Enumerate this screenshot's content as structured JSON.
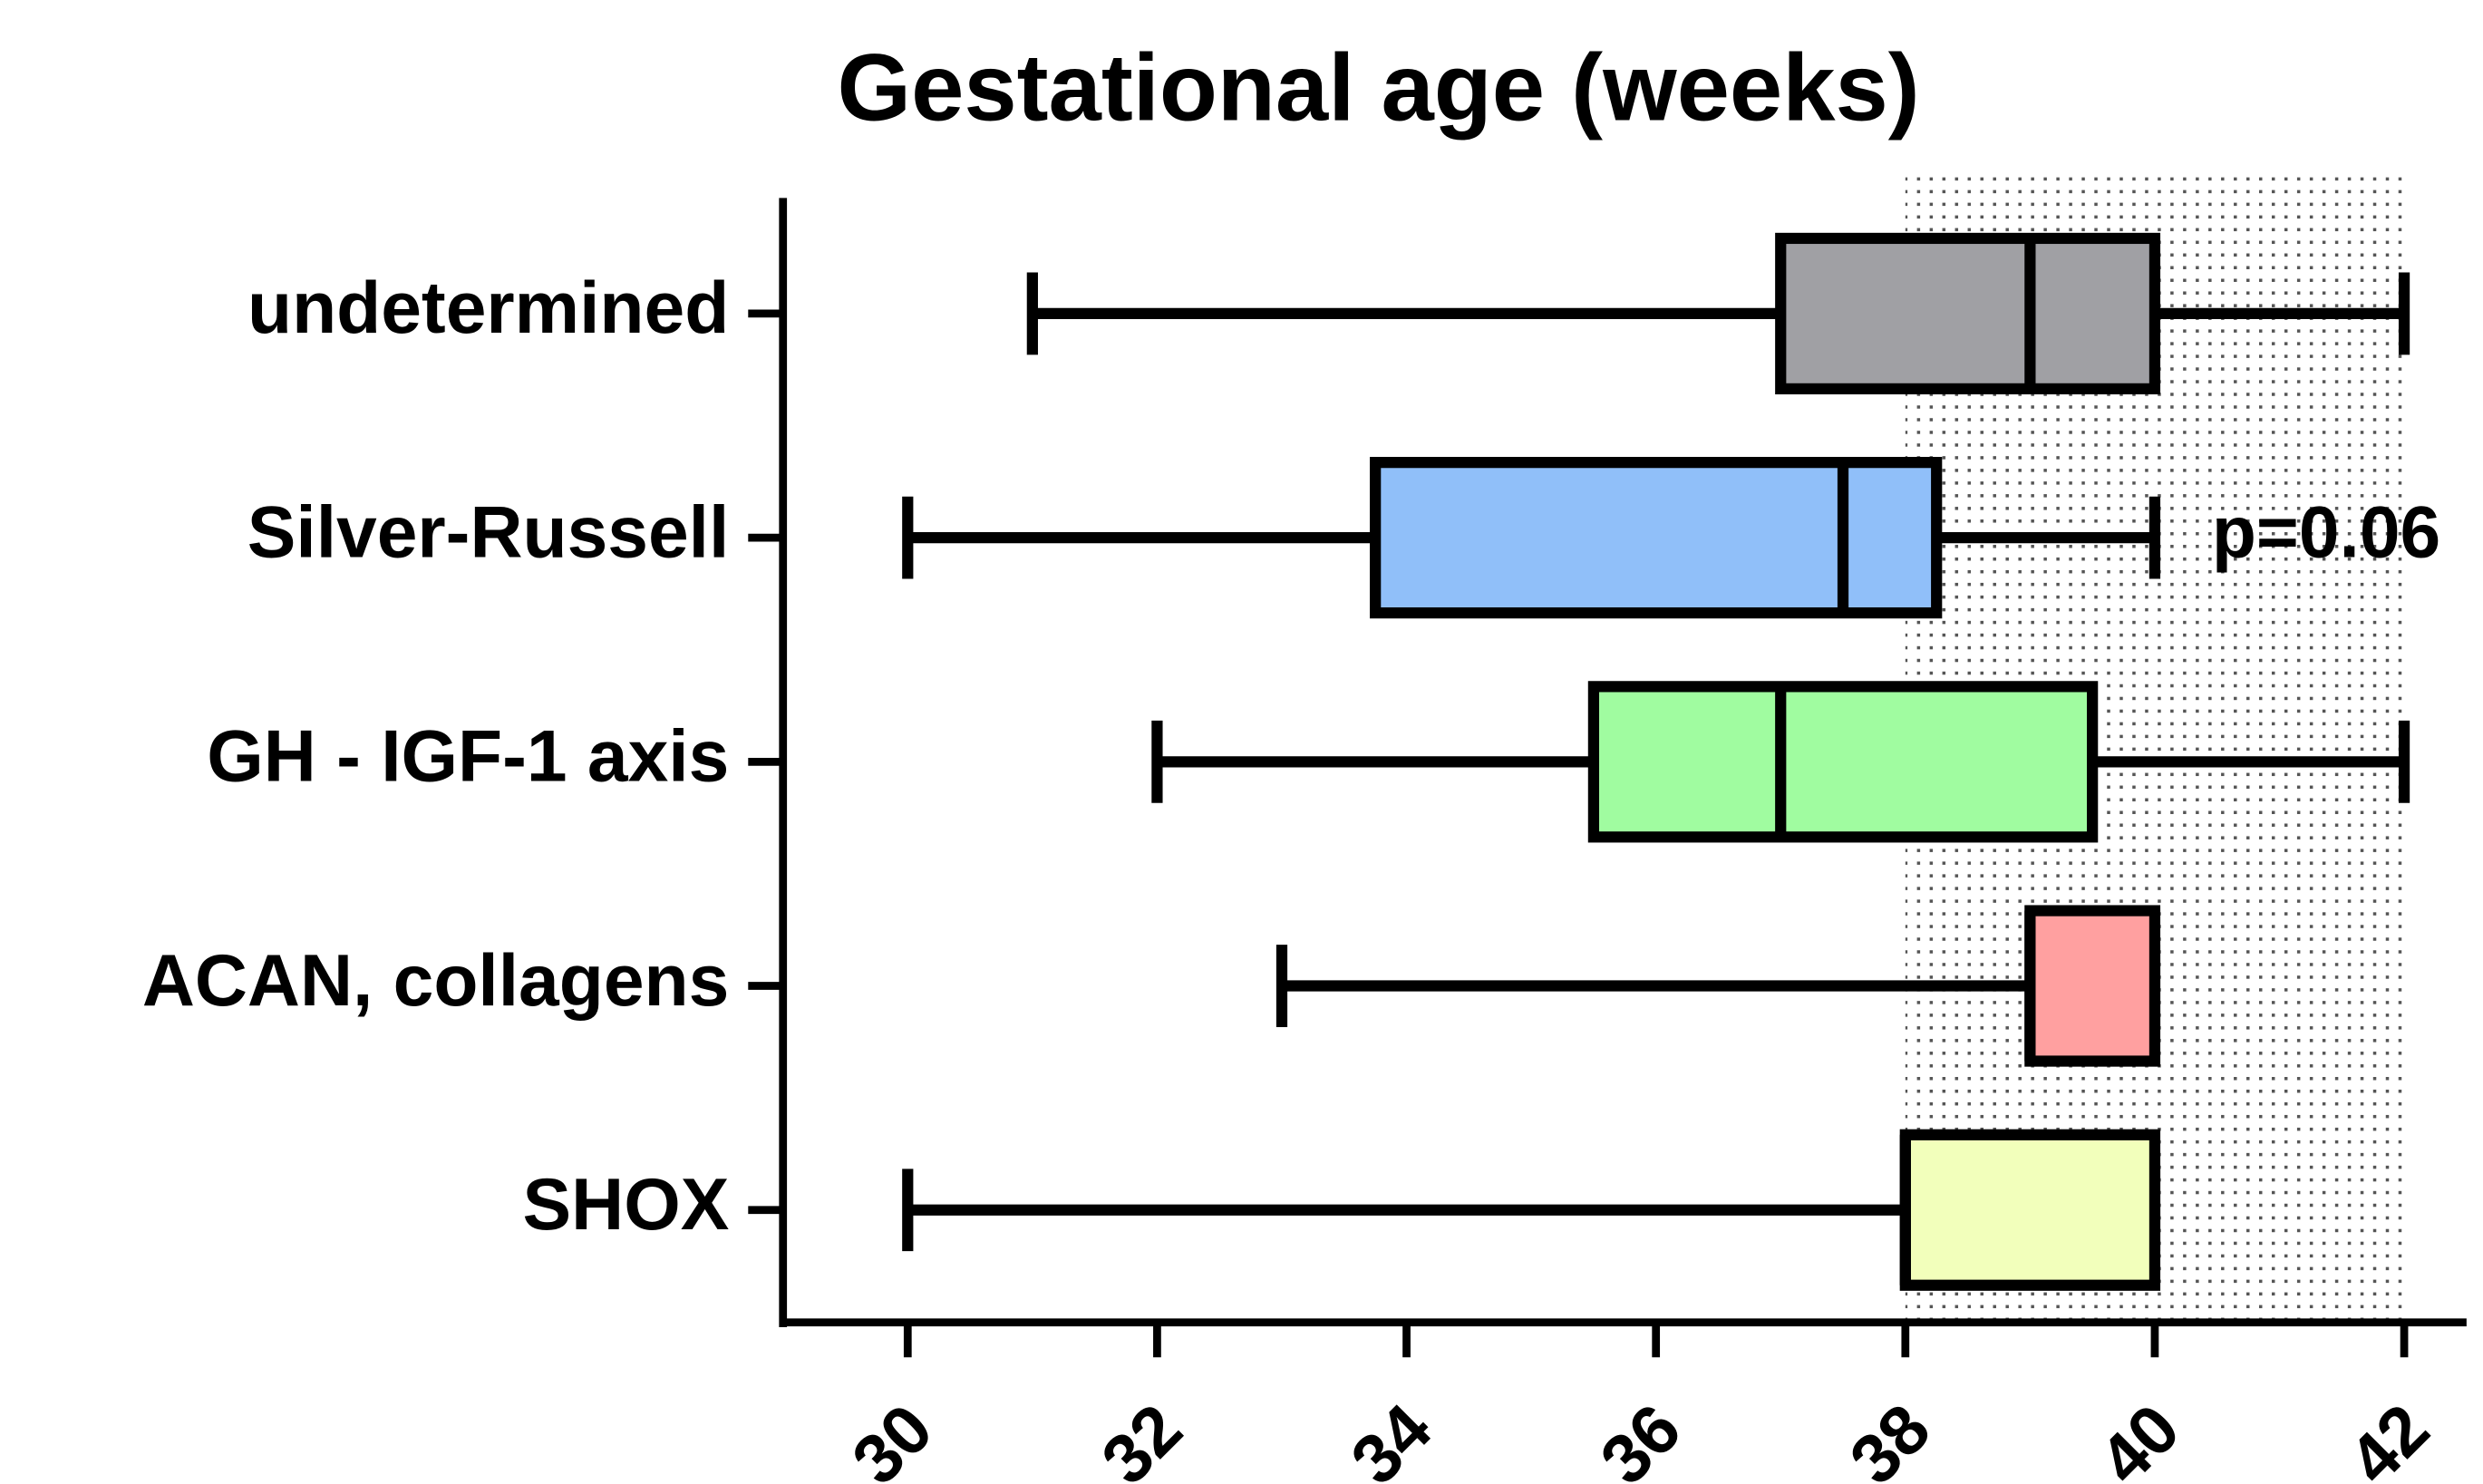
{
  "chart_data": {
    "type": "boxplot",
    "orientation": "horizontal",
    "title": "Gestational age (weeks)",
    "categories": [
      "undetermined",
      "Silver-Russell",
      "GH - IGF-1 axis",
      "ACAN, collagens",
      "SHOX"
    ],
    "boxes": [
      {
        "min": 31,
        "q1": 37,
        "median": 39,
        "q3": 40,
        "max": 42,
        "color": "#a0a0a4"
      },
      {
        "min": 30,
        "q1": 33.75,
        "median": 37.5,
        "q3": 38.25,
        "max": 40,
        "color": "#90bff9"
      },
      {
        "min": 32,
        "q1": 35.5,
        "median": 37,
        "q3": 39.5,
        "max": 42,
        "color": "#a0fca0"
      },
      {
        "min": 33,
        "q1": 39,
        "median": 39,
        "q3": 40,
        "max": 40,
        "color": "#ffa0a0"
      },
      {
        "min": 30,
        "q1": 38,
        "median": 38,
        "q3": 40,
        "max": 40,
        "color": "#f2ffbb"
      }
    ],
    "shaded_range": [
      38,
      42
    ],
    "annotations": [
      {
        "text": "p=0.06",
        "category": 1
      }
    ],
    "xlim": [
      29,
      42.5
    ],
    "xticks": [
      30,
      32,
      34,
      36,
      38,
      40,
      42
    ]
  }
}
